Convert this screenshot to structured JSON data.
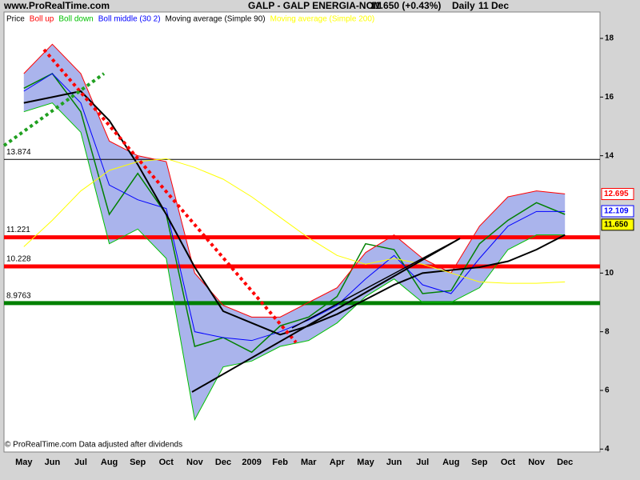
{
  "site": "www.ProRealTime.com",
  "title": "GALP - GALP ENERGIA-NOM",
  "last_price": "11.650 (+0.43%)",
  "period": "Daily",
  "date": "11 Dec",
  "footer": "© ProRealTime.com  Data adjusted after dividends",
  "chart_data": {
    "type": "line",
    "categories": [
      "May",
      "Jun",
      "Jul",
      "Aug",
      "Sep",
      "Oct",
      "Nov",
      "Dec",
      "2009",
      "Feb",
      "Mar",
      "Apr",
      "May",
      "Jun",
      "Jul",
      "Aug",
      "Sep",
      "Oct",
      "Nov",
      "Dec"
    ],
    "series": [
      {
        "name": "Price",
        "color": "#000000",
        "values": [
          16.3,
          16.8,
          15.5,
          12,
          13.4,
          12,
          7.5,
          7.8,
          7.3,
          8.2,
          8.5,
          9.2,
          11,
          10.8,
          9.3,
          9.4,
          11,
          11.8,
          12.4,
          12
        ]
      },
      {
        "name": "Boll up",
        "color": "#ff0000",
        "values": [
          16.8,
          17.8,
          16.8,
          14.5,
          14,
          13.8,
          10,
          8.9,
          8.5,
          8.5,
          9,
          9.5,
          10.7,
          11.3,
          10.5,
          10,
          11.6,
          12.6,
          12.8,
          12.7
        ]
      },
      {
        "name": "Boll down",
        "color": "#00c000",
        "values": [
          15.5,
          15.8,
          14.8,
          11,
          11.5,
          10.5,
          5,
          6.8,
          7,
          7.5,
          7.7,
          8.3,
          9.2,
          9.8,
          9,
          9,
          9.5,
          10.8,
          11.3,
          11.3
        ]
      },
      {
        "name": "Boll middle (30 2)",
        "color": "#0000ff",
        "values": [
          16.2,
          16.8,
          15.8,
          13,
          12.5,
          12.2,
          8,
          7.8,
          7.7,
          8,
          8.4,
          8.9,
          9.8,
          10.6,
          9.6,
          9.3,
          10.5,
          11.6,
          12.1,
          12.1
        ]
      },
      {
        "name": "Moving average (Simple 90)",
        "color": "#000000",
        "values": [
          15.8,
          16,
          16.2,
          15.2,
          13.7,
          12,
          10.2,
          8.7,
          8.3,
          7.9,
          8.2,
          8.6,
          9.1,
          9.6,
          10,
          10.1,
          10.2,
          10.4,
          10.8,
          11.3
        ]
      },
      {
        "name": "Moving average (Simple 200)",
        "color": "#ffff00",
        "values": [
          10.9,
          11.8,
          12.8,
          13.5,
          13.8,
          13.9,
          13.6,
          13.2,
          12.6,
          11.9,
          11.2,
          10.6,
          10.3,
          10.5,
          10.3,
          10,
          9.7,
          9.65,
          9.65,
          9.7
        ]
      }
    ],
    "band_fill": "#aab4ec",
    "ylim": [
      3.9,
      18.9
    ],
    "yticks": [
      4,
      6,
      8,
      10,
      14,
      16,
      18
    ],
    "levels": [
      {
        "value": 13.874,
        "color": "#000000"
      },
      {
        "value": 11.221,
        "color": "#ff0000"
      },
      {
        "value": 10.228,
        "color": "#ff0000"
      },
      {
        "value": 8.9763,
        "color": "#008000"
      }
    ],
    "value_tags": [
      {
        "value": 12.695,
        "color": "#ff0000"
      },
      {
        "value": 12.109,
        "color": "#0000ff"
      },
      {
        "value": 11.65,
        "label": "11.650",
        "color": "#000000",
        "background": "#ffff00"
      }
    ]
  }
}
